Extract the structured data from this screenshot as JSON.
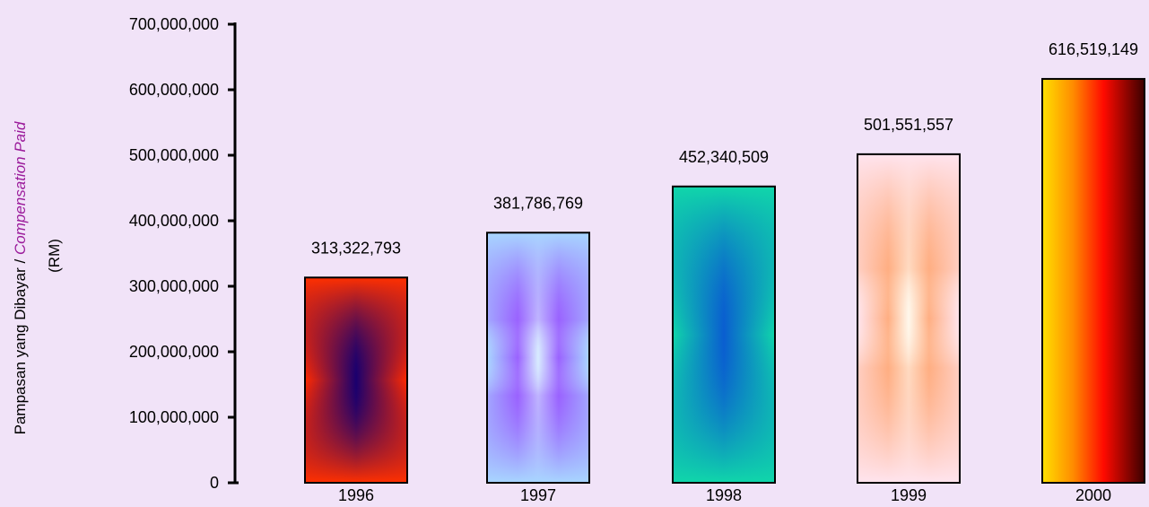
{
  "chart_data": {
    "type": "bar",
    "title": "",
    "xlabel": "",
    "ylabel_main": "Pampasan yang Dibayar / ",
    "ylabel_italic": "Compensation Paid",
    "ylabel_unit": "(RM)",
    "ylim": [
      0,
      700000000
    ],
    "yticks": [
      0,
      100000000,
      200000000,
      300000000,
      400000000,
      500000000,
      600000000,
      700000000
    ],
    "ytick_labels": [
      "0",
      "100,000,000",
      "200,000,000",
      "300,000,000",
      "400,000,000",
      "500,000,000",
      "600,000,000",
      "700,000,000"
    ],
    "categories": [
      "1996",
      "1997",
      "1998",
      "1999",
      "2000"
    ],
    "values": [
      313322793,
      381786769,
      452340509,
      501551557,
      616519149
    ],
    "value_labels": [
      "313,322,793",
      "381,786,769",
      "452,340,509",
      "501,551,557",
      "616,519,149"
    ],
    "grid": false,
    "legend": "none",
    "colors": {
      "background": "#f1e3f8",
      "ylabel_italic": "#9b1c9b"
    }
  }
}
